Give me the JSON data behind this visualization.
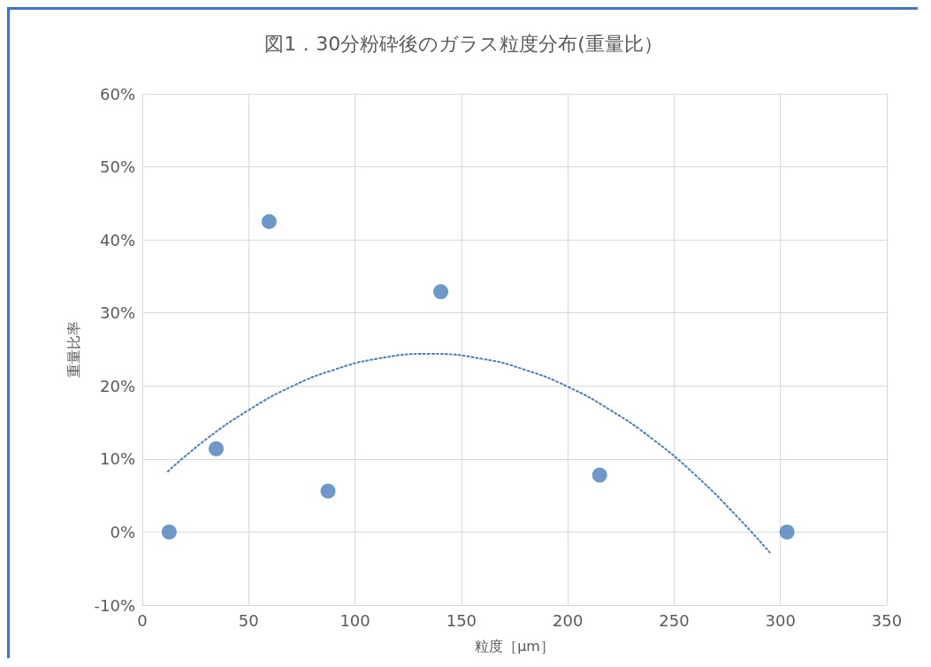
{
  "chart_data": {
    "type": "scatter",
    "title": "図1．30分粉砕後のガラス粒度分布(重量比）",
    "xlabel": "粒度［μm］",
    "ylabel": "重量比率",
    "xlim": [
      0,
      350
    ],
    "xticks": [
      0,
      50,
      100,
      150,
      200,
      250,
      300,
      350
    ],
    "ylim": [
      -10,
      60
    ],
    "yticks": [
      {
        "value": -10,
        "label": "-10%"
      },
      {
        "value": 0,
        "label": "0%"
      },
      {
        "value": 10,
        "label": "10%"
      },
      {
        "value": 20,
        "label": "20%"
      },
      {
        "value": 30,
        "label": "30%"
      },
      {
        "value": 40,
        "label": "40%"
      },
      {
        "value": 50,
        "label": "50%"
      },
      {
        "value": 60,
        "label": "60%"
      }
    ],
    "grid": true,
    "marker": "circle",
    "series": [
      {
        "color": "#4a7ebb",
        "x": [
          12.6,
          34.7,
          59.6,
          87.3,
          140.3,
          215,
          303.1
        ],
        "values": [
          0,
          11.4,
          42.5,
          5.6,
          32.9,
          7.8,
          0
        ]
      },
      {
        "type": "line",
        "color": "#4a7ebb",
        "line_style": "dotted",
        "marker": "none",
        "x": [
          12,
          30,
          50,
          70,
          90,
          110,
          135,
          160,
          180,
          200,
          220,
          240,
          260,
          280,
          295
        ],
        "values": [
          8.3,
          12.7,
          16.7,
          19.9,
          22.2,
          23.7,
          24.4,
          23.7,
          22.2,
          19.9,
          16.7,
          12.7,
          7.8,
          2.0,
          -2.8
        ]
      }
    ]
  }
}
